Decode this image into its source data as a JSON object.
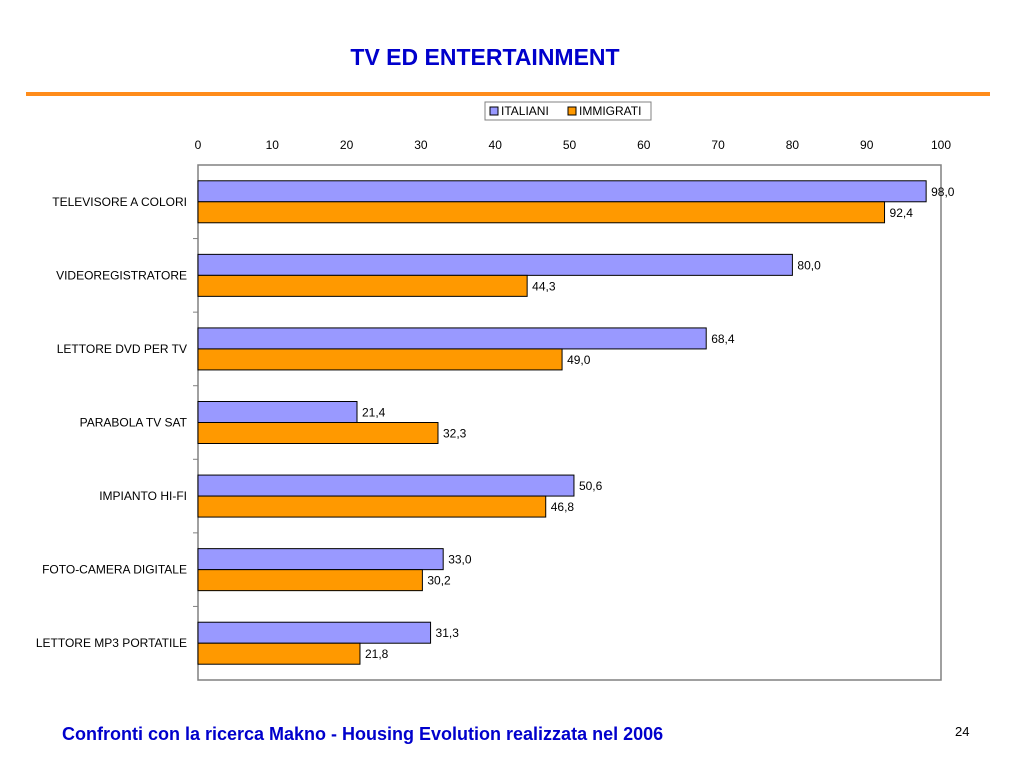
{
  "slide": {
    "title": "TV ED ENTERTAINMENT",
    "footer": "Confronti con la ricerca Makno -  Housing Evolution realizzata nel 2006",
    "page_number": "24",
    "accent_color": "#ff8c1a",
    "title_color": "#0000cc"
  },
  "chart_data": {
    "type": "bar",
    "orientation": "horizontal",
    "title": "",
    "xlabel": "",
    "ylabel": "",
    "xlim": [
      0,
      100
    ],
    "x_ticks": [
      "0",
      "10",
      "20",
      "30",
      "40",
      "50",
      "60",
      "70",
      "80",
      "90",
      "100"
    ],
    "x_axis_position": "top",
    "grid": false,
    "legend_position": "top-right",
    "categories": [
      "TELEVISORE A COLORI",
      "VIDEOREGISTRATORE",
      "LETTORE DVD PER TV",
      "PARABOLA TV SAT",
      "IMPIANTO HI-FI",
      "FOTO-CAMERA DIGITALE",
      "LETTORE MP3 PORTATILE"
    ],
    "series": [
      {
        "name": "ITALIANI",
        "color": "#9999ff",
        "values": [
          98.0,
          80.0,
          68.4,
          21.4,
          50.6,
          33.0,
          31.3
        ],
        "labels": [
          "98,0",
          "80,0",
          "68,4",
          "21,4",
          "50,6",
          "33,0",
          "31,3"
        ]
      },
      {
        "name": "IMMIGRATI",
        "color": "#ff9900",
        "values": [
          92.4,
          44.3,
          49.0,
          32.3,
          46.8,
          30.2,
          21.8
        ],
        "labels": [
          "92,4",
          "44,3",
          "49,0",
          "32,3",
          "46,8",
          "30,2",
          "21,8"
        ]
      }
    ]
  }
}
